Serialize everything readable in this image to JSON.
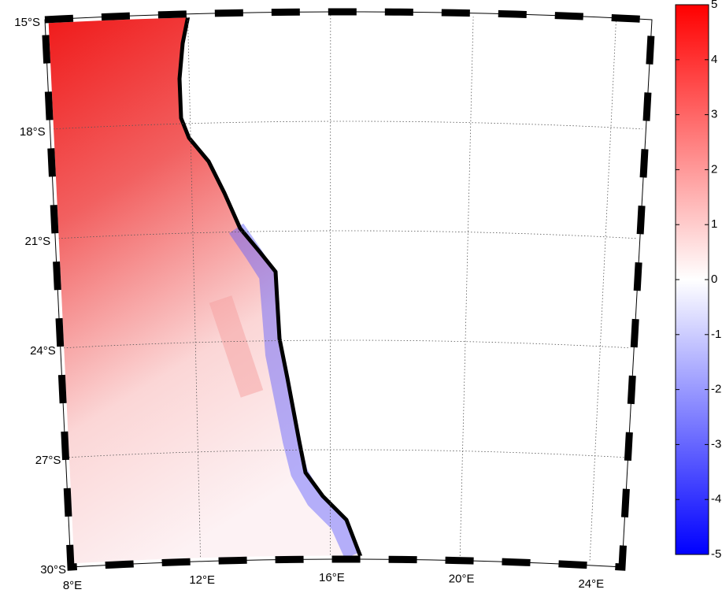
{
  "map": {
    "lat_labels": [
      "15°S",
      "18°S",
      "21°S",
      "24°S",
      "27°S",
      "30°S"
    ],
    "lon_labels": [
      "8°E",
      "12°E",
      "16°E",
      "20°E",
      "24°E"
    ]
  },
  "colorbar": {
    "lim": [
      -5,
      5
    ],
    "ticks": [
      -5,
      -4,
      -3,
      -2,
      -1,
      0,
      1,
      2,
      3,
      4,
      5
    ],
    "colors": [
      "#0000ff",
      "#ffffff",
      "#ff0000"
    ]
  }
}
